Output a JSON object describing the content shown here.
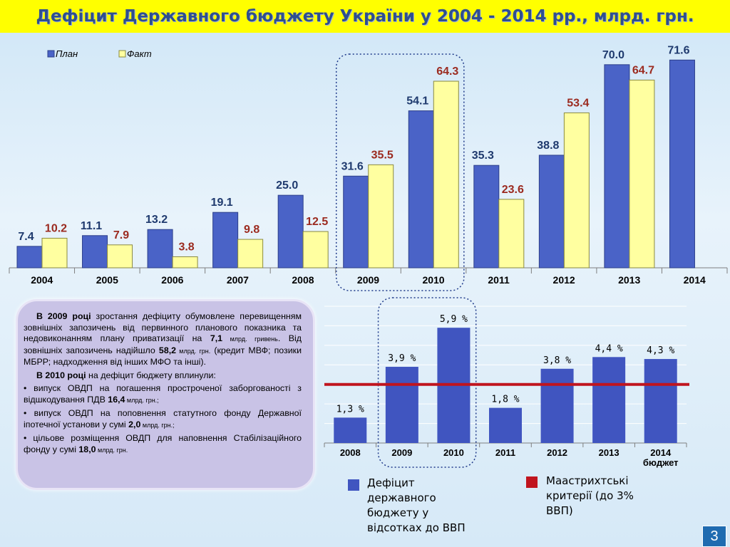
{
  "title": "Дефіцит Державного бюджету України у 2004 - 2014 рр., млрд. грн.",
  "colors": {
    "plan": "#4a63c7",
    "fact": "#ffffa0",
    "plan_label": "#1f3a6e",
    "fact_label": "#9b2a1f",
    "maastricht": "#c0141e",
    "bar2": "#4055c0"
  },
  "chart_data": [
    {
      "type": "bar",
      "categories": [
        "2004",
        "2005",
        "2006",
        "2007",
        "2008",
        "2009",
        "2010",
        "2011",
        "2012",
        "2013",
        "2014"
      ],
      "series": [
        {
          "name": "План",
          "values": [
            7.4,
            11.1,
            13.2,
            19.1,
            25.0,
            31.6,
            54.1,
            35.3,
            38.8,
            70.0,
            71.6
          ],
          "labels": [
            "7.4",
            "11.1",
            "13.2",
            "19.1",
            "25.0",
            "31.6",
            "54.1",
            "35.3",
            "38.8",
            "70.0",
            "71.6"
          ]
        },
        {
          "name": "Факт",
          "values": [
            10.2,
            7.9,
            3.8,
            9.8,
            12.5,
            35.5,
            64.3,
            23.6,
            53.4,
            64.7,
            null
          ],
          "labels": [
            "10.2",
            "7.9",
            "3.8",
            "9.8",
            "12.5",
            "35.5",
            "64.3",
            "23.6",
            "53.4",
            "64.7",
            ""
          ]
        }
      ],
      "ylim": [
        0,
        80
      ],
      "legend": "top-left"
    },
    {
      "type": "bar",
      "categories": [
        "2008",
        "2009",
        "2010",
        "2011",
        "2012",
        "2013",
        "2014 бюджет"
      ],
      "series": [
        {
          "name": "Дефіцит державного бюджету у відсотках до ВВП",
          "values": [
            1.3,
            3.9,
            5.9,
            1.8,
            3.8,
            4.4,
            4.3
          ],
          "labels": [
            "1,3 %",
            "3,9 %",
            "5,9 %",
            "1,8 %",
            "3,8 %",
            "4,4 %",
            "4,3 %"
          ]
        }
      ],
      "reference_line": {
        "name": "Маастрихтські критерії (до 3% ВВП)",
        "value": 3
      },
      "ylim": [
        0,
        7
      ],
      "grid": true,
      "legend": "bottom"
    }
  ],
  "textbox": {
    "p1_bold": "В 2009 році",
    "p1_a": " зростання дефіциту обумовлене перевищенням зовнішніх запозичень від первинного планового показника та недовиконанням плану приватизації на ",
    "p1_v1": "7,1",
    "p1_u1": " млрд. гривень",
    "p1_b": ". Від зовнішніх запозичень надійшло ",
    "p1_v2": "58,2",
    "p1_u2": " млрд. грн.",
    "p1_c": " (кредит МВФ; позики МБРР; надходження від інших МФО та інші).",
    "p2_bold": "В 2010 році",
    "p2_rest": " на дефіцит бюджету вплинули:",
    "items": [
      {
        "text": "• випуск ОВДП на погашення простроченої заборгованості з відшкодування ПДВ ",
        "value": "16,4",
        "unit": " млрд. грн.;"
      },
      {
        "text": "• випуск ОВДП на поповнення статутного фонду Державної іпотечної установи у сумі ",
        "value": "2,0",
        "unit": " млрд. грн.;"
      },
      {
        "text": "• цільове розміщення ОВДП для наповнення Стабілізаційного фонду у сумі ",
        "value": "18,0",
        "unit": " млрд. грн."
      }
    ]
  },
  "legend2": {
    "deficit": "Дефіцит державного бюджету у відсотках до ВВП",
    "deficit_lines": [
      "Дефіцит",
      "державного",
      "бюджету у",
      "відсотках до ВВП"
    ],
    "maastricht_lines": [
      "Маастрихтські",
      "критерії (до 3%",
      "ВВП)"
    ]
  },
  "page_number": "3"
}
